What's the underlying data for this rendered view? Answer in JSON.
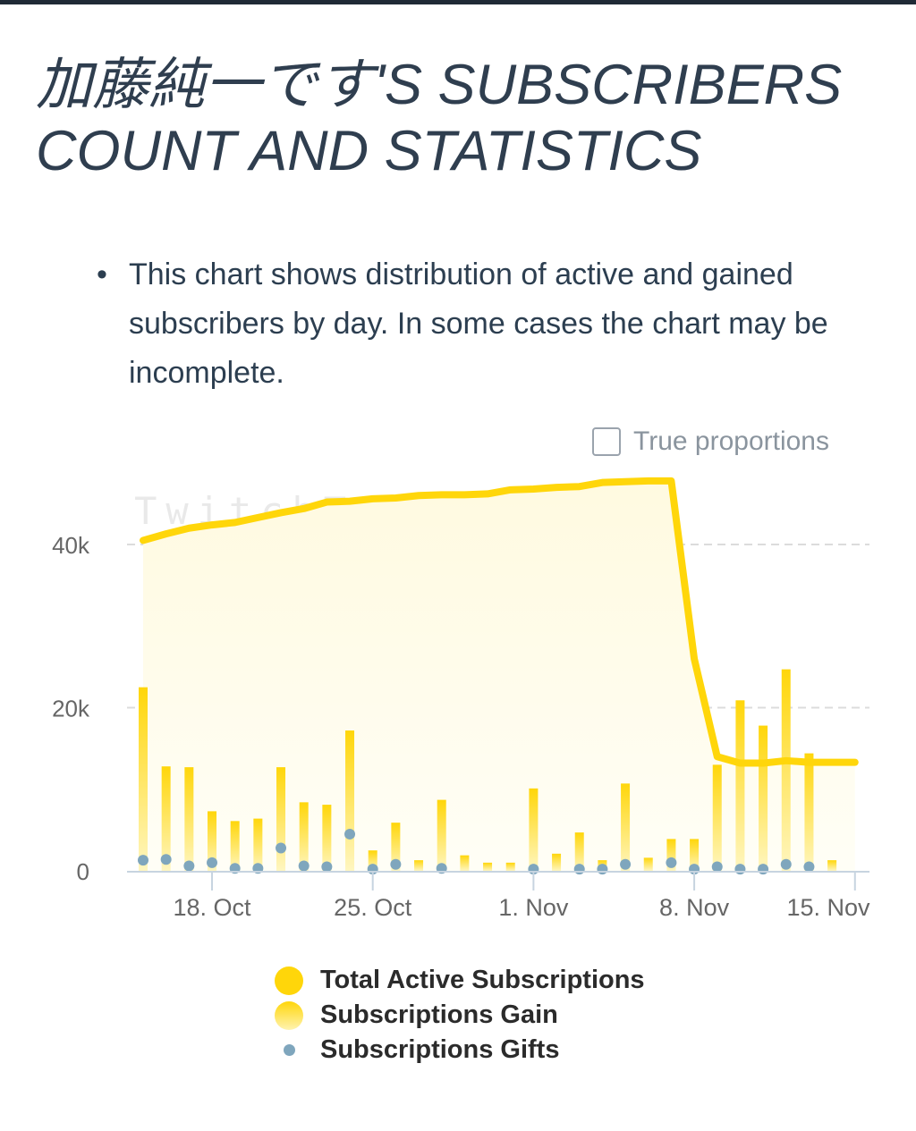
{
  "page": {
    "title": "加藤純一です'S SUBSCRIBERS COUNT AND STATISTICS",
    "note": "This chart shows distribution of active and gained subscribers by day. In some cases the chart may be incomplete.",
    "true_proportions_label": "True proportions",
    "watermark": "TwitchTracker.com"
  },
  "colors": {
    "total": "#ffd60a",
    "gain": "#ffd83a",
    "gifts": "#7fa6bd",
    "area": "#fffbe0",
    "grid": "#dcdcdc",
    "axis": "#c7d4e0"
  },
  "chart_data": {
    "type": "bar",
    "x": [
      "15. Oct",
      "16. Oct",
      "17. Oct",
      "18. Oct",
      "19. Oct",
      "20. Oct",
      "21. Oct",
      "22. Oct",
      "23. Oct",
      "24. Oct",
      "25. Oct",
      "26. Oct",
      "27. Oct",
      "28. Oct",
      "29. Oct",
      "30. Oct",
      "31. Oct",
      "1. Nov",
      "2. Nov",
      "3. Nov",
      "4. Nov",
      "5. Nov",
      "6. Nov",
      "7. Nov",
      "8. Nov",
      "9. Nov",
      "10. Nov",
      "11. Nov",
      "12. Nov",
      "13. Nov",
      "14. Nov",
      "15. Nov",
      "16. Nov"
    ],
    "x_ticks": [
      "18. Oct",
      "25. Oct",
      "1. Nov",
      "8. Nov",
      "15. Nov"
    ],
    "y_ticks": [
      "0",
      "20k",
      "40k"
    ],
    "ylim": [
      0,
      48000
    ],
    "grid": true,
    "legend_position": "bottom",
    "series": [
      {
        "name": "Total Active Subscriptions",
        "type": "area-line",
        "values": [
          40500,
          41300,
          42000,
          42400,
          42700,
          43300,
          43900,
          44400,
          45200,
          45300,
          45600,
          45700,
          46000,
          46100,
          46100,
          46200,
          46700,
          46800,
          47000,
          47100,
          47600,
          47700,
          47800,
          47800,
          26000,
          14000,
          13200,
          13200,
          13500,
          13300,
          13300,
          13300,
          13300
        ]
      },
      {
        "name": "Subscriptions Gain",
        "type": "bar",
        "values": [
          22500,
          12800,
          12700,
          7300,
          6100,
          6400,
          12700,
          8400,
          8100,
          17200,
          2500,
          5900,
          1300,
          8700,
          1900,
          1000,
          1000,
          10100,
          2100,
          4700,
          1300,
          10700,
          1600,
          3900,
          3900,
          13000,
          20900,
          17800,
          24700,
          14400,
          1300,
          0,
          0
        ]
      },
      {
        "name": "Subscriptions Gifts",
        "type": "scatter",
        "values": [
          1300,
          1400,
          600,
          1000,
          300,
          300,
          2800,
          600,
          500,
          4500,
          200,
          800,
          null,
          300,
          null,
          null,
          null,
          200,
          null,
          200,
          200,
          800,
          null,
          1000,
          200,
          500,
          200,
          200,
          800,
          500,
          null,
          null,
          null
        ]
      }
    ]
  }
}
